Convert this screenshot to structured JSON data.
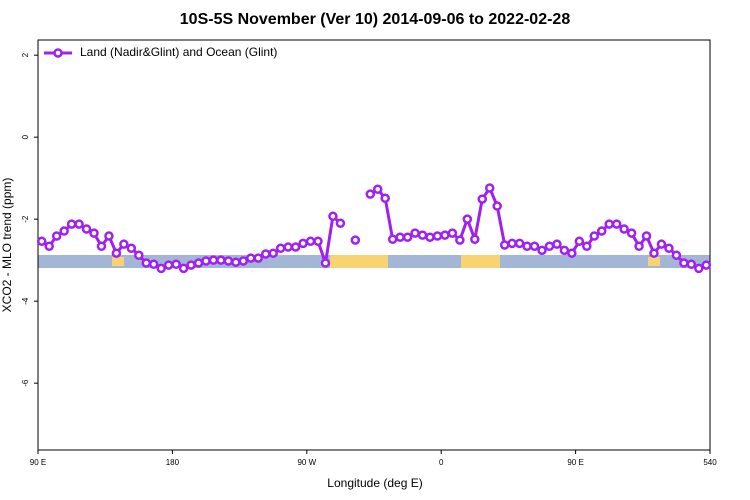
{
  "chart_data": {
    "type": "line",
    "title": "10S-5S November (Ver 10)   2014-09-06 to 2022-02-28",
    "x_label": "Longitude (deg E)",
    "y_label": "XCO2 - MLO trend (ppm)",
    "xlim": [
      90,
      540
    ],
    "ylim": [
      -7.63,
      2.37
    ],
    "xticks": [
      {
        "value": 90,
        "label": "90 E"
      },
      180,
      {
        "value": 270,
        "label": "90 W"
      },
      {
        "value": 360,
        "label": "0"
      },
      {
        "value": 450,
        "label": "90 E"
      },
      540
    ],
    "yticks": [
      -6,
      -4,
      -2,
      0,
      2
    ],
    "legend_position": "top-left",
    "x": [
      92.5,
      97.5,
      102.5,
      107.5,
      112.5,
      117.5,
      122.5,
      127.5,
      132.5,
      137.5,
      142.5,
      147.5,
      152.5,
      157.5,
      162.5,
      167.5,
      172.5,
      177.5,
      182.5,
      187.5,
      192.5,
      197.5,
      202.5,
      207.5,
      212.5,
      217.5,
      222.5,
      227.5,
      232.5,
      237.5,
      242.5,
      247.5,
      252.5,
      257.5,
      262.5,
      267.5,
      272.5,
      277.5,
      282.5,
      287.5,
      292.5,
      297.5,
      302.5,
      307.5,
      312.5,
      317.5,
      322.5,
      327.5,
      332.5,
      337.5,
      342.5,
      347.5,
      352.5,
      357.5,
      362.5,
      367.5,
      372.5,
      377.5,
      382.5,
      387.5,
      392.5,
      397.5,
      402.5,
      407.5,
      412.5,
      417.5,
      422.5,
      427.5,
      432.5,
      437.5,
      442.5,
      447.5,
      452.5,
      457.5,
      462.5,
      467.5,
      472.5,
      477.5,
      482.5,
      487.5,
      492.5,
      497.5,
      502.5,
      507.5,
      512.5,
      517.5,
      522.5,
      527.5,
      532.5,
      537.5
    ],
    "series": [
      {
        "name": "Land (Nadir&Glint) and Ocean (Glint)",
        "color": "#a020f0",
        "values": [
          -2.54,
          -2.66,
          -2.41,
          -2.29,
          -2.12,
          -2.12,
          -2.24,
          -2.34,
          -2.66,
          -2.41,
          -2.83,
          -2.61,
          -2.71,
          -2.88,
          -3.07,
          -3.1,
          -3.2,
          -3.12,
          -3.1,
          -3.2,
          -3.12,
          -3.07,
          -3.02,
          -3.0,
          -3.0,
          -3.02,
          -3.05,
          -3.02,
          -2.95,
          -2.95,
          -2.85,
          -2.83,
          -2.71,
          -2.68,
          -2.68,
          -2.59,
          -2.54,
          -2.54,
          -3.07,
          -1.93,
          -2.1,
          null,
          -2.51,
          null,
          -1.39,
          -1.27,
          -1.49,
          -2.49,
          -2.44,
          -2.44,
          -2.34,
          -2.39,
          -2.44,
          -2.41,
          -2.39,
          -2.34,
          -2.51,
          -2.0,
          -2.49,
          -1.51,
          -1.24,
          -1.68,
          -2.63,
          -2.59,
          -2.59,
          -2.66,
          -2.66,
          -2.76,
          -2.66,
          -2.61,
          -2.76,
          -2.83,
          -2.54,
          -2.66,
          -2.41,
          -2.29,
          -2.12,
          -2.12,
          -2.24,
          -2.34,
          -2.66,
          -2.41,
          -2.83,
          -2.61,
          -2.71,
          -2.88,
          -3.07,
          -3.1,
          -3.2,
          -3.12
        ]
      }
    ]
  }
}
